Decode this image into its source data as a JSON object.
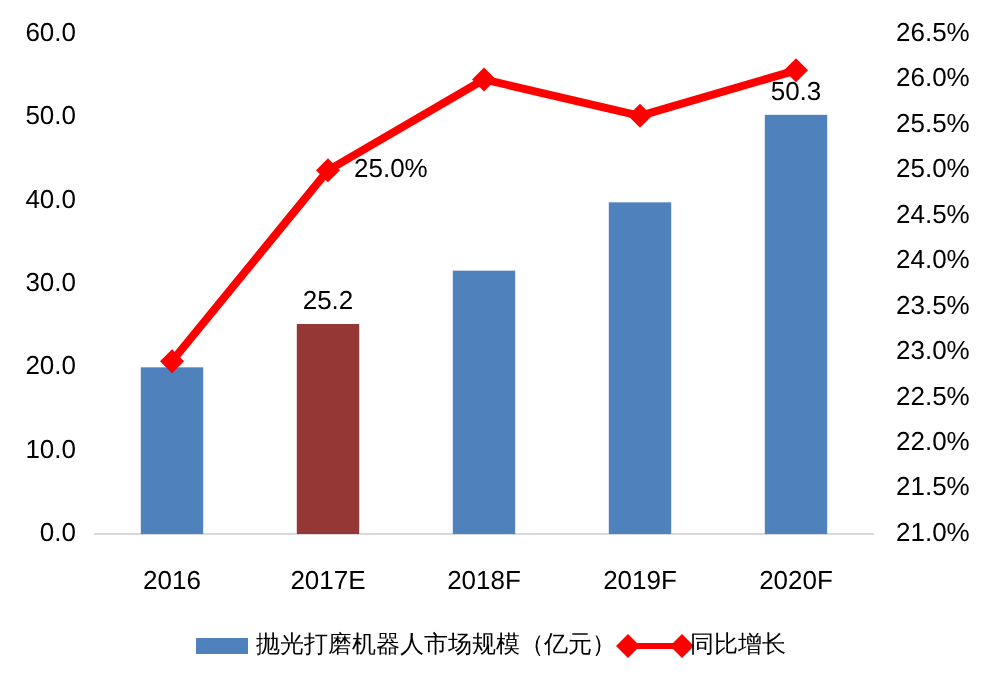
{
  "chart_data": {
    "type": "bar",
    "categories": [
      "2016",
      "2017E",
      "2018F",
      "2019F",
      "2020F"
    ],
    "series": [
      {
        "name": "抛光打磨机器人市场规模（亿元）",
        "color": "#4f81bd",
        "colors": [
          "#4f81bd",
          "#953735",
          "#4f81bd",
          "#4f81bd",
          "#4f81bd"
        ],
        "values": [
          20.0,
          25.2,
          31.6,
          39.8,
          50.3
        ],
        "value_labels": [
          null,
          "25.2",
          null,
          null,
          "50.3"
        ]
      },
      {
        "name": "同比增长",
        "type": "line",
        "axis": "y2",
        "color": "#ff0000",
        "marker": "diamond",
        "values": [
          22.9,
          25.0,
          26.0,
          25.6,
          26.1
        ],
        "value_labels": [
          null,
          "25.0%",
          null,
          null,
          null
        ]
      }
    ],
    "ylim": [
      0,
      60
    ],
    "yticks": [
      {
        "value": 0,
        "label": "0.0"
      },
      {
        "value": 10,
        "label": "10.0"
      },
      {
        "value": 20,
        "label": "20.0"
      },
      {
        "value": 30,
        "label": "30.0"
      },
      {
        "value": 40,
        "label": "40.0"
      },
      {
        "value": 50,
        "label": "50.0"
      },
      {
        "value": 60,
        "label": "60.0"
      }
    ],
    "y2lim": [
      21,
      26.5
    ],
    "y2ticks": [
      {
        "value": 21,
        "label": "21.0%"
      },
      {
        "value": 21.5,
        "label": "21.5%"
      },
      {
        "value": 22,
        "label": "22.0%"
      },
      {
        "value": 22.5,
        "label": "22.5%"
      },
      {
        "value": 23,
        "label": "23.0%"
      },
      {
        "value": 23.5,
        "label": "23.5%"
      },
      {
        "value": 24,
        "label": "24.0%"
      },
      {
        "value": 24.5,
        "label": "24.5%"
      },
      {
        "value": 25,
        "label": "25.0%"
      },
      {
        "value": 25.5,
        "label": "25.5%"
      },
      {
        "value": 26,
        "label": "26.0%"
      },
      {
        "value": 26.5,
        "label": "26.5%"
      }
    ],
    "grid": false,
    "legend": "bottom"
  }
}
